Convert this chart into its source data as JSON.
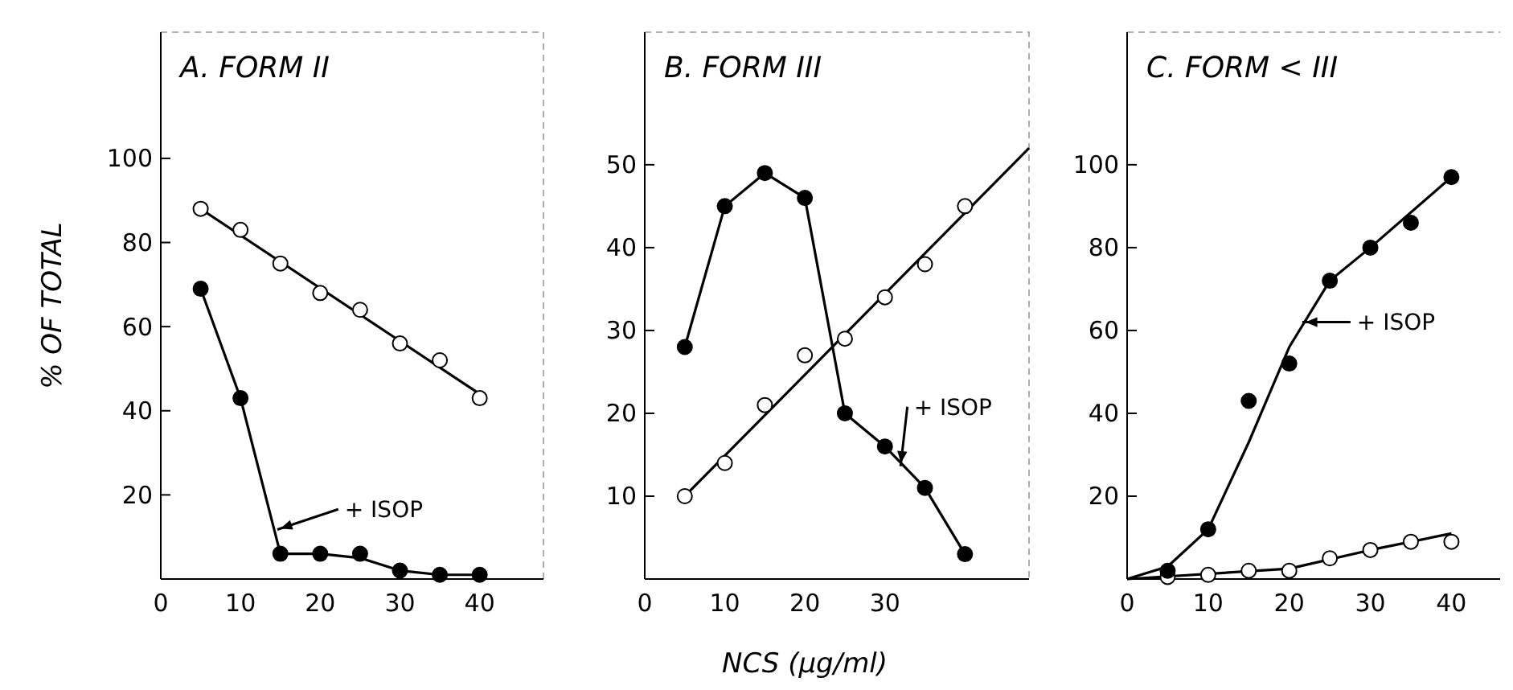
{
  "chart_data": [
    {
      "type": "scatter",
      "title": "A. FORM II",
      "ylabel": "% OF TOTAL",
      "xlim": [
        0,
        48
      ],
      "ylim": [
        0,
        130
      ],
      "xticks": [
        0,
        10,
        20,
        30,
        40
      ],
      "yticks": [
        20,
        40,
        60,
        80,
        100
      ],
      "grid": false,
      "annotations": [
        {
          "text": "+ ISOP",
          "x": 15,
          "y": 12
        }
      ],
      "series": [
        {
          "type": "line",
          "color": "#000000",
          "marker": "none",
          "x": [
            5,
            40
          ],
          "values": [
            88,
            44
          ]
        },
        {
          "type": "line",
          "color": "#000000",
          "marker": "none",
          "x": [
            5,
            10,
            15,
            20,
            25,
            30,
            35,
            40
          ],
          "values": [
            69,
            43,
            6,
            6,
            5,
            2,
            1,
            1
          ]
        },
        {
          "color": "#ffffff",
          "marker": "circle",
          "x": [
            5,
            10,
            15,
            20,
            25,
            30,
            35,
            40
          ],
          "values": [
            88,
            83,
            75,
            68,
            64,
            56,
            52,
            43
          ]
        },
        {
          "color": "#000000",
          "marker": "circle",
          "x": [
            5,
            10,
            15,
            20,
            25,
            30,
            35,
            40
          ],
          "values": [
            69,
            43,
            6,
            6,
            6,
            2,
            1,
            1
          ]
        }
      ]
    },
    {
      "type": "scatter",
      "title": "B. FORM III",
      "xlabel": "NCS (μg/ml)",
      "xlim": [
        0,
        48
      ],
      "ylim": [
        0,
        66
      ],
      "xticks": [
        0,
        10,
        20,
        30
      ],
      "yticks": [
        10,
        20,
        30,
        40,
        50
      ],
      "grid": false,
      "annotations": [
        {
          "text": "+ ISOP",
          "x": 32,
          "y": 14
        }
      ],
      "series": [
        {
          "type": "line",
          "color": "#000000",
          "marker": "none",
          "x": [
            5,
            48
          ],
          "values": [
            10,
            52
          ]
        },
        {
          "type": "line",
          "color": "#000000",
          "marker": "none",
          "x": [
            5,
            10,
            15,
            20,
            25,
            30,
            35,
            40
          ],
          "values": [
            28,
            45,
            49,
            46,
            20,
            16,
            11,
            3
          ]
        },
        {
          "color": "#ffffff",
          "marker": "circle",
          "x": [
            5,
            10,
            15,
            20,
            25,
            30,
            35,
            40
          ],
          "values": [
            10,
            14,
            21,
            27,
            29,
            34,
            38,
            45
          ]
        },
        {
          "color": "#000000",
          "marker": "circle",
          "x": [
            5,
            10,
            15,
            20,
            25,
            30,
            35,
            40
          ],
          "values": [
            28,
            45,
            49,
            46,
            20,
            16,
            11,
            3
          ]
        }
      ]
    },
    {
      "type": "scatter",
      "title": "C. FORM < III",
      "xlim": [
        0,
        47
      ],
      "ylim": [
        0,
        132
      ],
      "xticks": [
        0,
        10,
        20,
        30,
        40
      ],
      "yticks": [
        20,
        40,
        60,
        80,
        100
      ],
      "grid": false,
      "annotations": [
        {
          "text": "+ ISOP",
          "x": 22,
          "y": 62
        }
      ],
      "series": [
        {
          "type": "line",
          "color": "#000000",
          "marker": "none",
          "x": [
            0,
            5,
            10,
            15,
            20,
            25,
            30,
            40
          ],
          "values": [
            0,
            3,
            12,
            33,
            56,
            72,
            80,
            97
          ]
        },
        {
          "type": "line",
          "color": "#000000",
          "marker": "none",
          "x": [
            0,
            20,
            30,
            40
          ],
          "values": [
            0,
            2.5,
            7,
            11
          ]
        },
        {
          "color": "#ffffff",
          "marker": "circle",
          "x": [
            5,
            10,
            15,
            20,
            25,
            30,
            35,
            40
          ],
          "values": [
            0.5,
            1,
            2,
            2,
            5,
            7,
            9,
            9
          ]
        },
        {
          "color": "#000000",
          "marker": "circle",
          "x": [
            5,
            10,
            15,
            20,
            25,
            30,
            35,
            40
          ],
          "values": [
            2,
            12,
            43,
            52,
            72,
            80,
            86,
            97
          ]
        }
      ]
    }
  ]
}
